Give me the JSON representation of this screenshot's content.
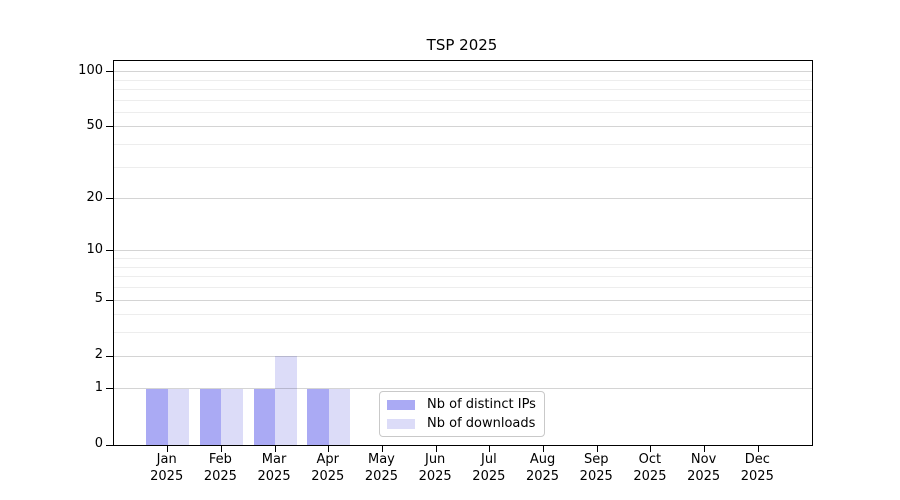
{
  "chart_data": {
    "type": "bar",
    "title": "TSP 2025",
    "categories": [
      "Jan 2025",
      "Feb 2025",
      "Mar 2025",
      "Apr 2025",
      "May 2025",
      "Jun 2025",
      "Jul 2025",
      "Aug 2025",
      "Sep 2025",
      "Oct 2025",
      "Nov 2025",
      "Dec 2025"
    ],
    "series": [
      {
        "name": "Nb of distinct IPs",
        "color": "#aaaaf4",
        "values": [
          1,
          1,
          1,
          1,
          0,
          0,
          0,
          0,
          0,
          0,
          0,
          0
        ]
      },
      {
        "name": "Nb of downloads",
        "color": "#dcdcf8",
        "values": [
          1,
          1,
          2,
          1,
          0,
          0,
          0,
          0,
          0,
          0,
          0,
          0
        ]
      }
    ],
    "yticks": [
      0,
      1,
      2,
      5,
      10,
      20,
      50,
      100
    ],
    "y_scale": "log10(value+1)",
    "ylim": [
      0,
      115
    ],
    "xlabel": "",
    "ylabel": "",
    "grid": "horizontal",
    "legend_position": "lower center"
  },
  "colors": {
    "background": "#ffffff",
    "spine": "#000000",
    "text": "#000000",
    "grid_major": "rgba(0,0,0,0.17)",
    "grid_minor": "rgba(0,0,0,0.07)"
  }
}
